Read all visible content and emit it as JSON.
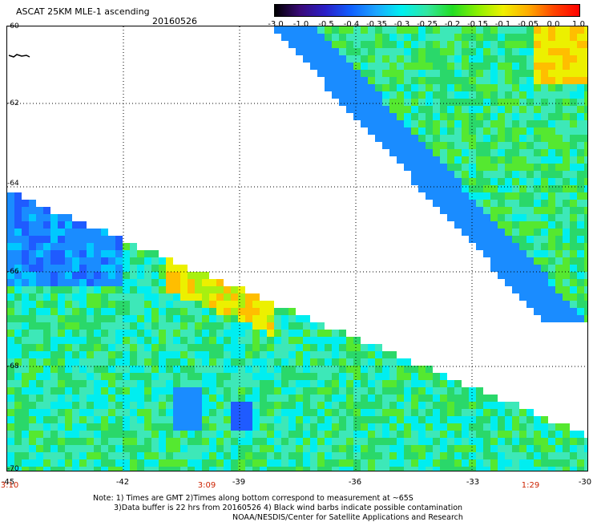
{
  "header": {
    "title": "ASCAT 25KM MLE-1 ascending",
    "date": "20160526"
  },
  "colorbar": {
    "labels": [
      "-3.0",
      "-1.0",
      "-0.5",
      "-0.4",
      "-0.35",
      "-0.3",
      "-0.25",
      "-0.2",
      "-0.15",
      "-0.1",
      "-0.05",
      "0.0",
      "1.0"
    ],
    "colors": [
      "#000000",
      "#3a0a78",
      "#2a1fc8",
      "#1060ff",
      "#1ca6ff",
      "#00f0f0",
      "#33e6a0",
      "#22dd22",
      "#8cf000",
      "#f0f000",
      "#ffaa00",
      "#ff4400",
      "#ff0000"
    ]
  },
  "map": {
    "lat_labels": [
      "-60",
      "-62",
      "-64",
      "-66",
      "-68",
      "-70"
    ],
    "lon_labels": [
      "-45",
      "-42",
      "-39",
      "-36",
      "-33",
      "-30"
    ],
    "time_labels": [
      "3:10",
      "3:09",
      "1:29"
    ]
  },
  "footer": {
    "line1": "Note: 1) Times are GMT 2)Times along bottom correspond to measurement at ~65S",
    "line2": "3)Data buffer is 22 hrs from 20160526 4) Black wind barbs indicate possible contamination",
    "line3": "NOAA/NESDIS/Center for Satellite Applications and Research"
  }
}
